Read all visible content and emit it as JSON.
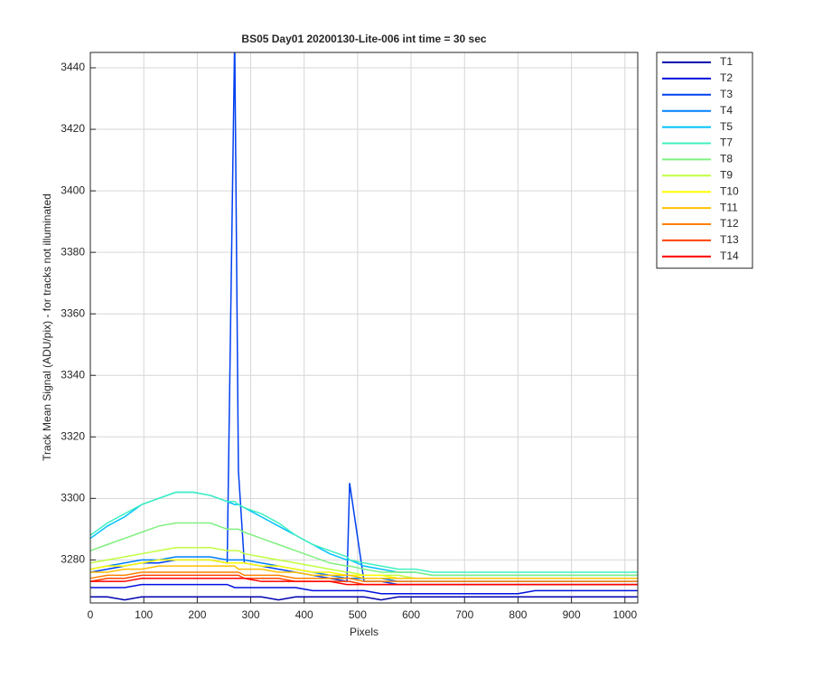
{
  "chart_data": {
    "type": "line",
    "title": "BS05 Day01 20200130-Lite-006 int time = 30 sec",
    "xlabel": "Pixels",
    "ylabel": "Track Mean Signal (ADU/pix) - for tracks not illuminated",
    "x": [
      0,
      32,
      64,
      96,
      128,
      160,
      192,
      224,
      256,
      270,
      277,
      288,
      320,
      352,
      384,
      416,
      448,
      480,
      485,
      512,
      544,
      576,
      608,
      640,
      672,
      704,
      736,
      768,
      800,
      832,
      864,
      896,
      928,
      960,
      992,
      1023
    ],
    "xlim": [
      0,
      1024
    ],
    "ylim": [
      3266,
      3445
    ],
    "xticks": [
      0,
      100,
      200,
      300,
      400,
      500,
      600,
      700,
      800,
      900,
      1000
    ],
    "yticks": [
      3280,
      3300,
      3320,
      3340,
      3360,
      3380,
      3400,
      3420,
      3440
    ],
    "grid": true,
    "legend": "northeastoutside",
    "series": [
      {
        "name": "T1",
        "color": "#0000b0",
        "values": [
          3268,
          3268,
          3267,
          3268,
          3268,
          3268,
          3268,
          3268,
          3268,
          3268,
          3268,
          3268,
          3268,
          3267,
          3268,
          3268,
          3268,
          3268,
          3268,
          3268,
          3267,
          3268,
          3268,
          3268,
          3268,
          3268,
          3268,
          3268,
          3268,
          3268,
          3268,
          3268,
          3268,
          3268,
          3268,
          3268
        ]
      },
      {
        "name": "T2",
        "color": "#0010e0",
        "values": [
          3271,
          3271,
          3271,
          3272,
          3272,
          3272,
          3272,
          3272,
          3272,
          3271,
          3271,
          3271,
          3271,
          3271,
          3271,
          3270,
          3270,
          3270,
          3270,
          3270,
          3269,
          3269,
          3269,
          3269,
          3269,
          3269,
          3269,
          3269,
          3269,
          3270,
          3270,
          3270,
          3270,
          3270,
          3270,
          3270
        ]
      },
      {
        "name": "T3",
        "color": "#0040f0",
        "values": [
          3276,
          3277,
          3278,
          3279,
          3279,
          3280,
          3280,
          3280,
          3279,
          3450,
          3309,
          3279,
          3278,
          3277,
          3276,
          3275,
          3274,
          3273,
          3305,
          3273,
          3273,
          3272,
          3272,
          3272,
          3272,
          3272,
          3272,
          3272,
          3272,
          3272,
          3272,
          3272,
          3272,
          3272,
          3272,
          3272
        ]
      },
      {
        "name": "T4",
        "color": "#0080ff",
        "values": [
          3277,
          3278,
          3279,
          3280,
          3280,
          3281,
          3281,
          3281,
          3280,
          3280,
          3280,
          3280,
          3279,
          3278,
          3277,
          3276,
          3275,
          3274,
          3274,
          3274,
          3274,
          3273,
          3273,
          3273,
          3273,
          3273,
          3273,
          3273,
          3273,
          3273,
          3273,
          3273,
          3273,
          3273,
          3273,
          3273
        ]
      },
      {
        "name": "T5",
        "color": "#00c0ff",
        "values": [
          3287,
          3291,
          3294,
          3298,
          3300,
          3302,
          3302,
          3301,
          3299,
          3298,
          3298,
          3297,
          3294,
          3291,
          3288,
          3285,
          3282,
          3280,
          3280,
          3278,
          3277,
          3276,
          3276,
          3275,
          3275,
          3275,
          3275,
          3275,
          3275,
          3275,
          3275,
          3275,
          3275,
          3275,
          3275,
          3275
        ]
      },
      {
        "name": "T7",
        "color": "#40f0c0",
        "values": [
          3288,
          3292,
          3295,
          3298,
          3300,
          3302,
          3302,
          3301,
          3299,
          3299,
          3298,
          3297,
          3295,
          3292,
          3288,
          3285,
          3283,
          3281,
          3280,
          3279,
          3278,
          3277,
          3277,
          3276,
          3276,
          3276,
          3276,
          3276,
          3276,
          3276,
          3276,
          3276,
          3276,
          3276,
          3276,
          3276
        ]
      },
      {
        "name": "T8",
        "color": "#80f080",
        "values": [
          3283,
          3285,
          3287,
          3289,
          3291,
          3292,
          3292,
          3292,
          3290,
          3290,
          3290,
          3289,
          3287,
          3285,
          3283,
          3281,
          3279,
          3278,
          3278,
          3277,
          3276,
          3276,
          3276,
          3275,
          3275,
          3275,
          3275,
          3275,
          3275,
          3275,
          3275,
          3275,
          3275,
          3275,
          3275,
          3275
        ]
      },
      {
        "name": "T9",
        "color": "#c0ff40",
        "values": [
          3279,
          3280,
          3281,
          3282,
          3283,
          3284,
          3284,
          3284,
          3283,
          3283,
          3283,
          3282,
          3281,
          3280,
          3279,
          3278,
          3277,
          3276,
          3276,
          3275,
          3275,
          3275,
          3274,
          3274,
          3274,
          3274,
          3274,
          3274,
          3274,
          3274,
          3274,
          3274,
          3274,
          3274,
          3274,
          3274
        ]
      },
      {
        "name": "T10",
        "color": "#ffff00",
        "values": [
          3277,
          3278,
          3278,
          3279,
          3280,
          3280,
          3280,
          3280,
          3279,
          3279,
          3279,
          3279,
          3278,
          3278,
          3277,
          3276,
          3276,
          3275,
          3275,
          3275,
          3275,
          3274,
          3274,
          3274,
          3274,
          3274,
          3274,
          3274,
          3274,
          3274,
          3274,
          3274,
          3274,
          3274,
          3274,
          3274
        ]
      },
      {
        "name": "T11",
        "color": "#ffc000",
        "values": [
          3276,
          3276,
          3277,
          3277,
          3278,
          3278,
          3278,
          3278,
          3278,
          3278,
          3277,
          3277,
          3277,
          3276,
          3276,
          3275,
          3275,
          3275,
          3275,
          3274,
          3274,
          3274,
          3274,
          3274,
          3274,
          3274,
          3274,
          3274,
          3274,
          3274,
          3274,
          3274,
          3274,
          3274,
          3274,
          3274
        ]
      },
      {
        "name": "T12",
        "color": "#ff8000",
        "values": [
          3274,
          3275,
          3275,
          3276,
          3276,
          3276,
          3276,
          3276,
          3276,
          3276,
          3276,
          3275,
          3275,
          3275,
          3274,
          3274,
          3274,
          3274,
          3274,
          3273,
          3273,
          3273,
          3273,
          3273,
          3273,
          3273,
          3273,
          3273,
          3273,
          3273,
          3273,
          3273,
          3273,
          3273,
          3273,
          3273
        ]
      },
      {
        "name": "T13",
        "color": "#ff4000",
        "values": [
          3273,
          3274,
          3274,
          3275,
          3275,
          3275,
          3275,
          3275,
          3275,
          3275,
          3275,
          3274,
          3274,
          3274,
          3273,
          3273,
          3273,
          3273,
          3273,
          3272,
          3272,
          3272,
          3272,
          3272,
          3272,
          3272,
          3272,
          3272,
          3272,
          3272,
          3272,
          3272,
          3272,
          3272,
          3272,
          3272
        ]
      },
      {
        "name": "T14",
        "color": "#ff0000",
        "values": [
          3273,
          3273,
          3273,
          3274,
          3274,
          3274,
          3274,
          3274,
          3274,
          3274,
          3274,
          3274,
          3273,
          3273,
          3273,
          3273,
          3273,
          3272,
          3272,
          3272,
          3272,
          3272,
          3272,
          3272,
          3272,
          3272,
          3272,
          3272,
          3272,
          3272,
          3272,
          3272,
          3272,
          3272,
          3272,
          3272
        ]
      }
    ]
  }
}
